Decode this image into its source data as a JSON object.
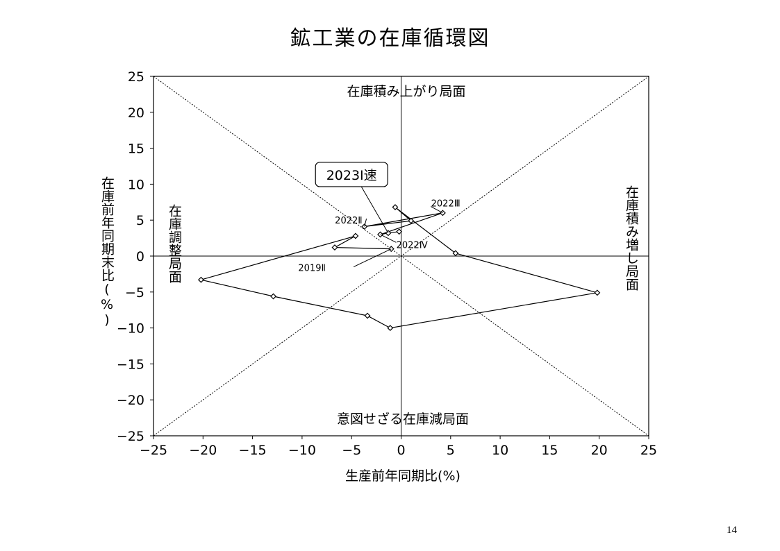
{
  "chart_data": {
    "type": "scatter",
    "title": "鉱工業の在庫循環図",
    "xlabel": "生産前年同期比(%)",
    "ylabel": "在庫前年同期末比(%)",
    "xlim": [
      -25,
      25
    ],
    "ylim": [
      -25,
      25
    ],
    "xticks": [
      -25,
      -20,
      -15,
      -10,
      -5,
      0,
      5,
      10,
      15,
      20,
      25
    ],
    "yticks": [
      -25,
      -20,
      -15,
      -10,
      -5,
      0,
      5,
      10,
      15,
      20,
      25
    ],
    "tick_labels": {
      "x": [
        "−25",
        "−20",
        "−15",
        "−10",
        "−5",
        "0",
        "5",
        "10",
        "15",
        "20",
        "25"
      ],
      "y": [
        "−25",
        "−20",
        "−15",
        "−10",
        "−5",
        "0",
        "5",
        "10",
        "15",
        "20",
        "25"
      ]
    },
    "grid": false,
    "reference_lines": [
      "diagonal y=x",
      "diagonal y=-x",
      "axis x=0",
      "axis y=0"
    ],
    "series": [
      {
        "marker": "diamond",
        "connected": true,
        "points": [
          {
            "x": -1.0,
            "y": 1.0
          },
          {
            "x": -6.7,
            "y": 1.2
          },
          {
            "x": -4.6,
            "y": 2.8
          },
          {
            "x": -20.2,
            "y": -3.3
          },
          {
            "x": -12.9,
            "y": -5.6
          },
          {
            "x": -3.4,
            "y": -8.3
          },
          {
            "x": -1.1,
            "y": -10.0
          },
          {
            "x": 19.8,
            "y": -5.1
          },
          {
            "x": 5.5,
            "y": 0.4
          },
          {
            "x": -0.6,
            "y": 6.8
          },
          {
            "x": 1.0,
            "y": 4.9
          },
          {
            "x": -3.7,
            "y": 4.1
          },
          {
            "x": 4.2,
            "y": 6.0
          },
          {
            "x": -2.1,
            "y": 3.0
          },
          {
            "x": -1.3,
            "y": 3.2
          },
          {
            "x": -0.2,
            "y": 3.4
          }
        ]
      }
    ],
    "quadrant_labels": {
      "top": "在庫積み上がり局面",
      "bottom": "意図せざる在庫減局面",
      "left": "在庫調整局面",
      "right": "在庫積み増し局面"
    },
    "annotations": [
      {
        "text": "2019Ⅱ",
        "x": -1.0,
        "y": 1.0
      },
      {
        "text": "2022Ⅱ",
        "x": -3.7,
        "y": 4.1
      },
      {
        "text": "2022Ⅲ",
        "x": 4.2,
        "y": 6.0
      },
      {
        "text": "2022Ⅳ",
        "x": -2.1,
        "y": 3.0
      },
      {
        "text": "2023Ⅰ速",
        "x": -1.3,
        "y": 3.2,
        "boxed": true
      }
    ]
  },
  "page_number": "14"
}
